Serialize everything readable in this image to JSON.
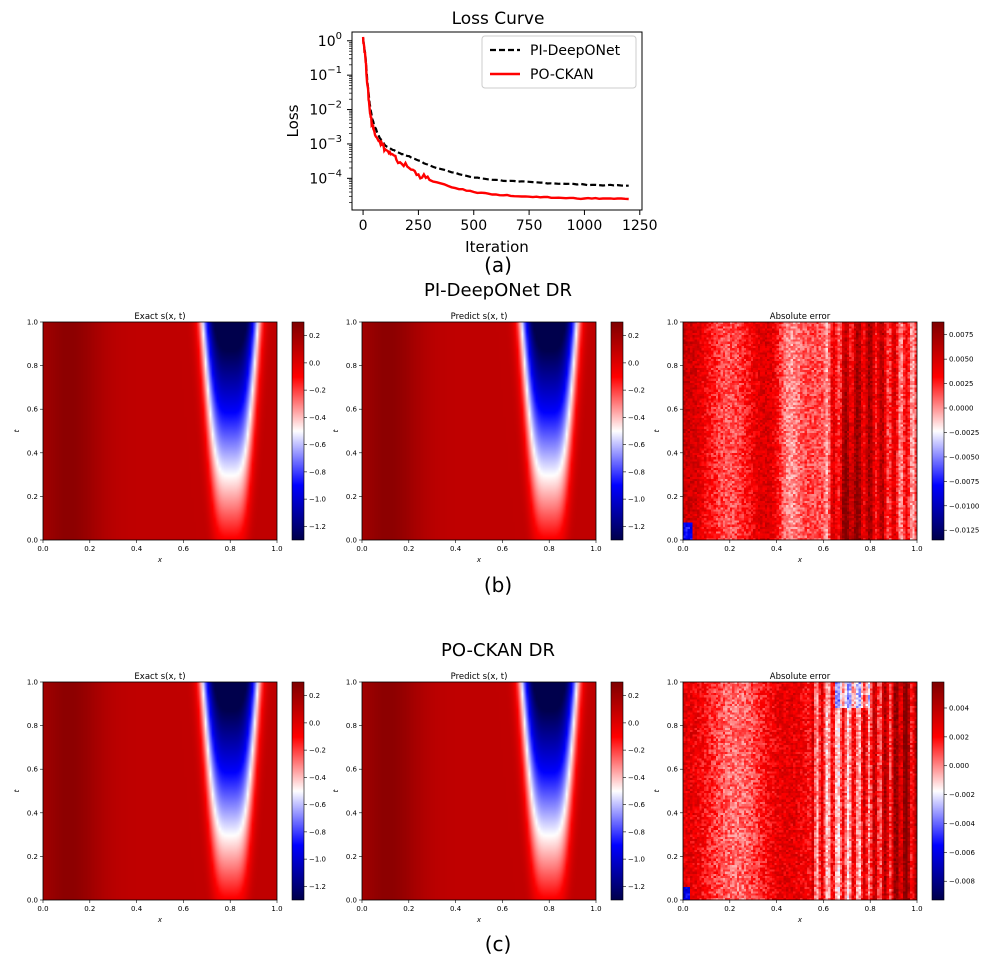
{
  "chart_data": [
    {
      "type": "line",
      "title": "Loss Curve",
      "xlabel": "Iteration",
      "ylabel": "Loss",
      "xlim": [
        -50,
        1260
      ],
      "ylim": [
        1.2e-05,
        1.8
      ],
      "yscale": "log",
      "xticks": [
        "0",
        "250",
        "500",
        "750",
        "1000",
        "1250"
      ],
      "yticks": [
        "10^0",
        "10^-1",
        "10^-2",
        "10^-3",
        "10^-4"
      ],
      "legend_position": "top-right",
      "series": [
        {
          "name": "PI-DeepONet",
          "color": "#000000",
          "dash": "dashed",
          "x": [
            0,
            10,
            20,
            30,
            40,
            50,
            75,
            100,
            150,
            200,
            250,
            300,
            400,
            500,
            600,
            700,
            800,
            900,
            1000,
            1100,
            1200
          ],
          "y": [
            1.2,
            0.4,
            0.06,
            0.015,
            0.006,
            0.0035,
            0.0015,
            0.0009,
            0.0006,
            0.00045,
            0.00033,
            0.00024,
            0.00015,
            0.000105,
            9e-05,
            8e-05,
            7.5e-05,
            7e-05,
            6.6e-05,
            6.3e-05,
            6.1e-05
          ]
        },
        {
          "name": "PO-CKAN",
          "color": "#ff0000",
          "dash": "solid",
          "x": [
            0,
            10,
            20,
            30,
            40,
            50,
            75,
            100,
            125,
            150,
            200,
            250,
            300,
            400,
            500,
            600,
            700,
            800,
            900,
            1000,
            1100,
            1200
          ],
          "y": [
            1.3,
            0.35,
            0.05,
            0.01,
            0.004,
            0.0025,
            0.0012,
            0.0007,
            0.0005,
            0.00035,
            0.00022,
            0.00013,
            9e-05,
            5.5e-05,
            4e-05,
            3.4e-05,
            3e-05,
            2.8e-05,
            2.7e-05,
            2.6e-05,
            2.6e-05,
            2.5e-05
          ]
        }
      ]
    },
    {
      "type": "heatmap",
      "row_title": "PI-DeepONet DR",
      "panels": [
        {
          "title": "Exact s(x, t)",
          "xlabel": "x",
          "ylabel": "t",
          "colorbar_ticks": [
            "0.2",
            "0.0",
            "−0.2",
            "−0.4",
            "−0.6",
            "−0.8",
            "−1.0",
            "−1.2"
          ],
          "clim": [
            -1.3,
            0.3
          ]
        },
        {
          "title": "Predict s(x, t)",
          "xlabel": "x",
          "ylabel": "t",
          "colorbar_ticks": [
            "0.2",
            "0.0",
            "−0.2",
            "−0.4",
            "−0.6",
            "−0.8",
            "−1.0",
            "−1.2"
          ],
          "clim": [
            -1.3,
            0.3
          ]
        },
        {
          "title": "Absolute error",
          "xlabel": "x",
          "ylabel": "t",
          "colorbar_ticks": [
            "0.0075",
            "0.0050",
            "0.0025",
            "0.0000",
            "−0.0025",
            "−0.0050",
            "−0.0075",
            "−0.0100",
            "−0.0125"
          ],
          "clim": [
            -0.0135,
            0.0088
          ]
        }
      ]
    },
    {
      "type": "heatmap",
      "row_title": "PO-CKAN DR",
      "panels": [
        {
          "title": "Exact s(x, t)",
          "xlabel": "x",
          "ylabel": "t",
          "colorbar_ticks": [
            "0.2",
            "0.0",
            "−0.2",
            "−0.4",
            "−0.6",
            "−0.8",
            "−1.0",
            "−1.2"
          ],
          "clim": [
            -1.3,
            0.3
          ]
        },
        {
          "title": "Predict s(x, t)",
          "xlabel": "x",
          "ylabel": "t",
          "colorbar_ticks": [
            "0.2",
            "0.0",
            "−0.2",
            "−0.4",
            "−0.6",
            "−0.8",
            "−1.0",
            "−1.2"
          ],
          "clim": [
            -1.3,
            0.3
          ]
        },
        {
          "title": "Absolute error",
          "xlabel": "x",
          "ylabel": "t",
          "colorbar_ticks": [
            "0.004",
            "0.002",
            "0.000",
            "−0.002",
            "−0.004",
            "−0.006",
            "−0.008"
          ],
          "clim": [
            -0.0093,
            0.0058
          ]
        }
      ]
    }
  ],
  "axis_ticks": [
    "0.0",
    "0.2",
    "0.4",
    "0.6",
    "0.8",
    "1.0"
  ],
  "captions": {
    "a": "(a)",
    "b": "(b)",
    "c": "(c)"
  }
}
